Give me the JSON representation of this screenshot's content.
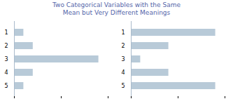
{
  "chart_data": [
    {
      "type": "bar",
      "title": "Two Categorical Variables with the Same\nMean but Very Different Meanings",
      "orientation": "horizontal",
      "categories": [
        "1",
        "2",
        "3",
        "4",
        "5"
      ],
      "values": [
        1,
        2,
        9,
        2,
        1
      ],
      "color": "#b8cad8",
      "xlim": [
        0,
        10
      ],
      "xticks": [
        0,
        5,
        10
      ],
      "tick_labels": "y"
    },
    {
      "type": "bar",
      "orientation": "horizontal",
      "categories": [
        "1",
        "2",
        "3",
        "4",
        "5"
      ],
      "values": [
        9,
        4,
        1,
        4,
        9
      ],
      "color": "#b8cad8",
      "xlim": [
        0,
        10
      ],
      "xticks": [
        0,
        5,
        10
      ],
      "tick_labels": "y"
    }
  ]
}
